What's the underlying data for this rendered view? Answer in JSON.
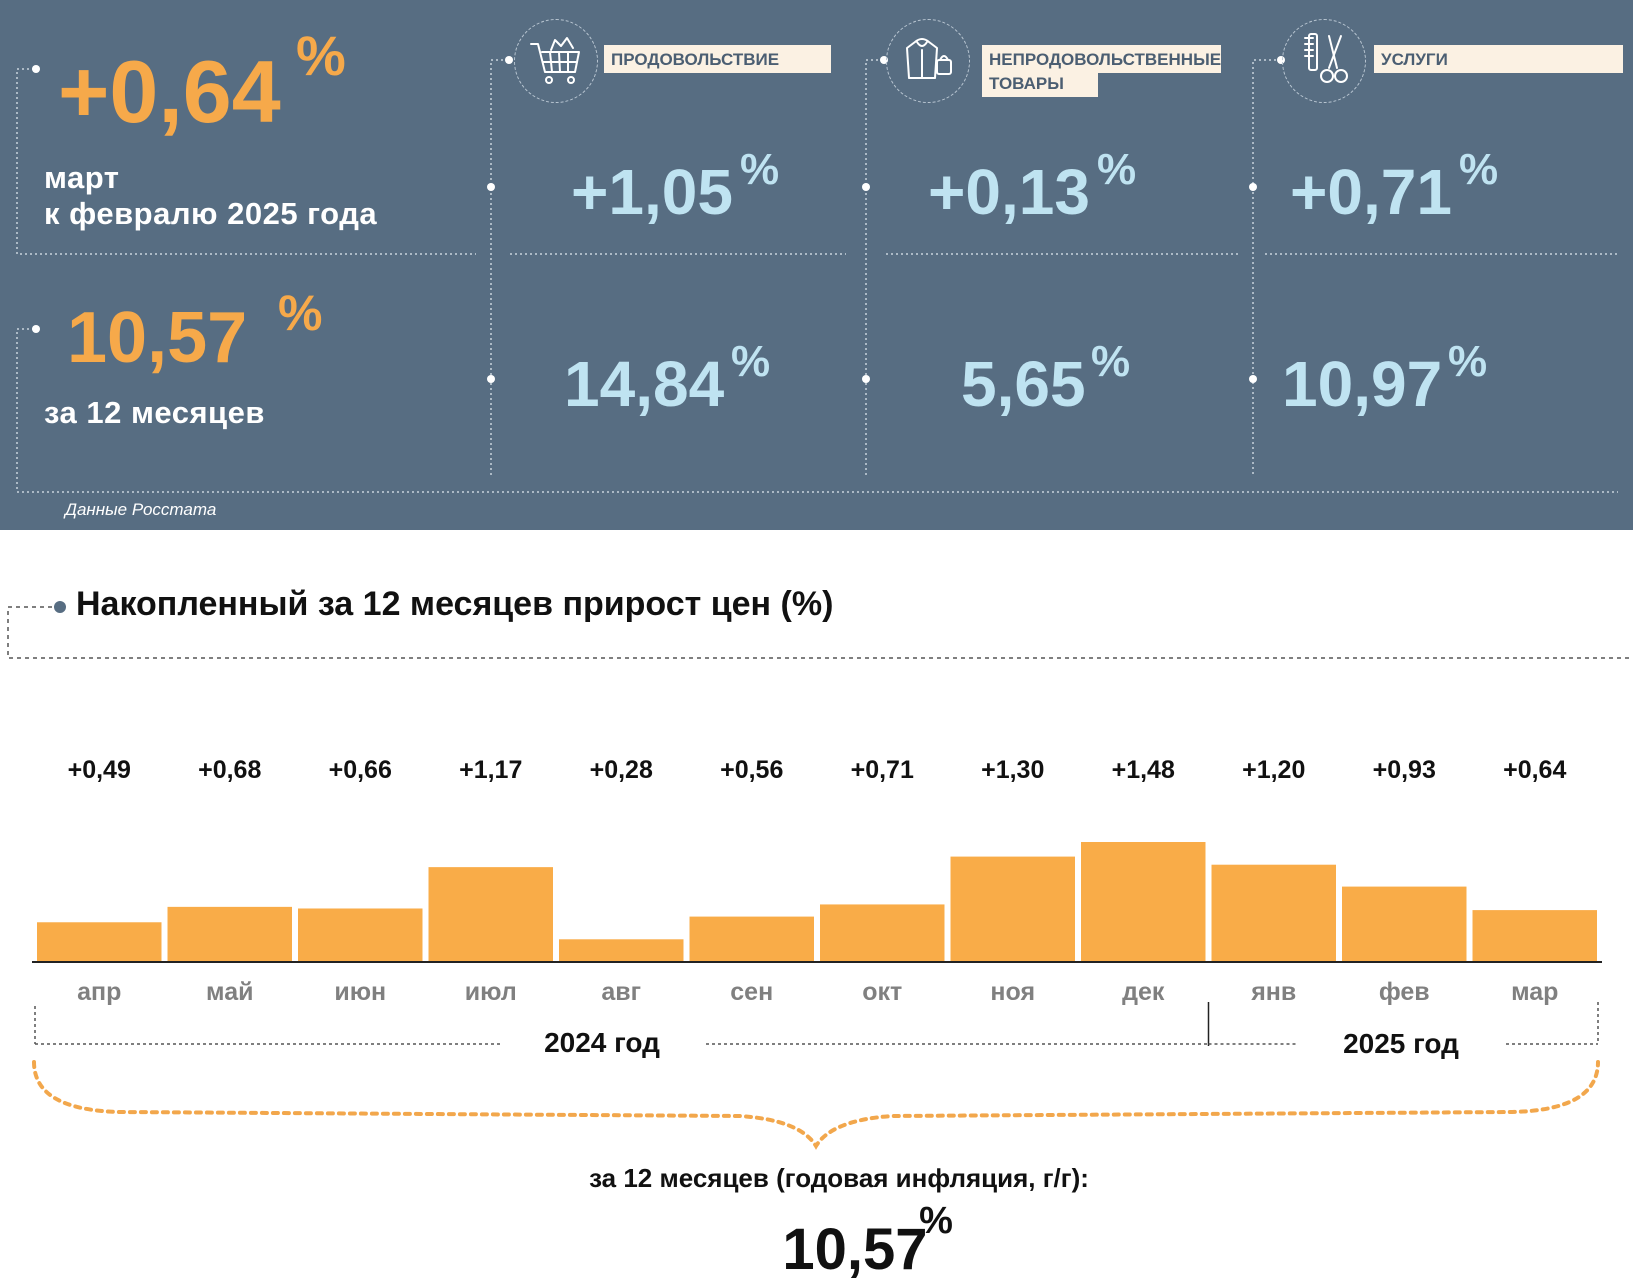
{
  "header": {
    "monthly": {
      "value": "+0,64",
      "unit": "%",
      "label_line1": "март",
      "label_line2": "к февралю 2025 года"
    },
    "annual": {
      "value": "10,57",
      "unit": "%",
      "label": "за 12 месяцев"
    },
    "source": "Данные Росстата",
    "categories": [
      {
        "icon": "shopping-cart-icon",
        "label": "ПРОДОВОЛЬСТВИЕ",
        "monthly": "+1,05",
        "annual": "14,84",
        "unit": "%"
      },
      {
        "icon": "clothing-icon",
        "label_line1": "НЕПРОДОВОЛЬСТВЕННЫЕ",
        "label_line2": "ТОВАРЫ",
        "monthly": "+0,13",
        "annual": "5,65",
        "unit": "%"
      },
      {
        "icon": "scissors-comb-icon",
        "label": "УСЛУГИ",
        "monthly": "+0,71",
        "annual": "10,97",
        "unit": "%"
      }
    ],
    "colors": {
      "panel": "#576d82",
      "orange": "#f6a94a",
      "light_blue": "#bfe3f1",
      "label_bg": "#fbf1e3"
    }
  },
  "chart_data": {
    "type": "bar",
    "title": "Накопленный за 12 месяцев прирост цен (%)",
    "categories": [
      "апр",
      "май",
      "июн",
      "июл",
      "авг",
      "сен",
      "окт",
      "ноя",
      "дек",
      "янв",
      "фев",
      "мар"
    ],
    "values": [
      0.49,
      0.68,
      0.66,
      1.17,
      0.28,
      0.56,
      0.71,
      1.3,
      1.48,
      1.2,
      0.93,
      0.64
    ],
    "value_labels": [
      "+0,49",
      "+0,68",
      "+0,66",
      "+1,17",
      "+0,28",
      "+0,56",
      "+0,71",
      "+1,30",
      "+1,48",
      "+1,20",
      "+0,93",
      "+0,64"
    ],
    "ylim": [
      0,
      1.48
    ],
    "grid": false,
    "years": [
      {
        "label": "2024 год",
        "from": "апр",
        "to": "дек"
      },
      {
        "label": "2025 год",
        "from": "янв",
        "to": "мар"
      }
    ],
    "summary_label": "за 12 месяцев (годовая инфляция, г/г):",
    "summary_value": "10,57",
    "summary_unit": "%",
    "bar_color": "#f9ac48"
  }
}
